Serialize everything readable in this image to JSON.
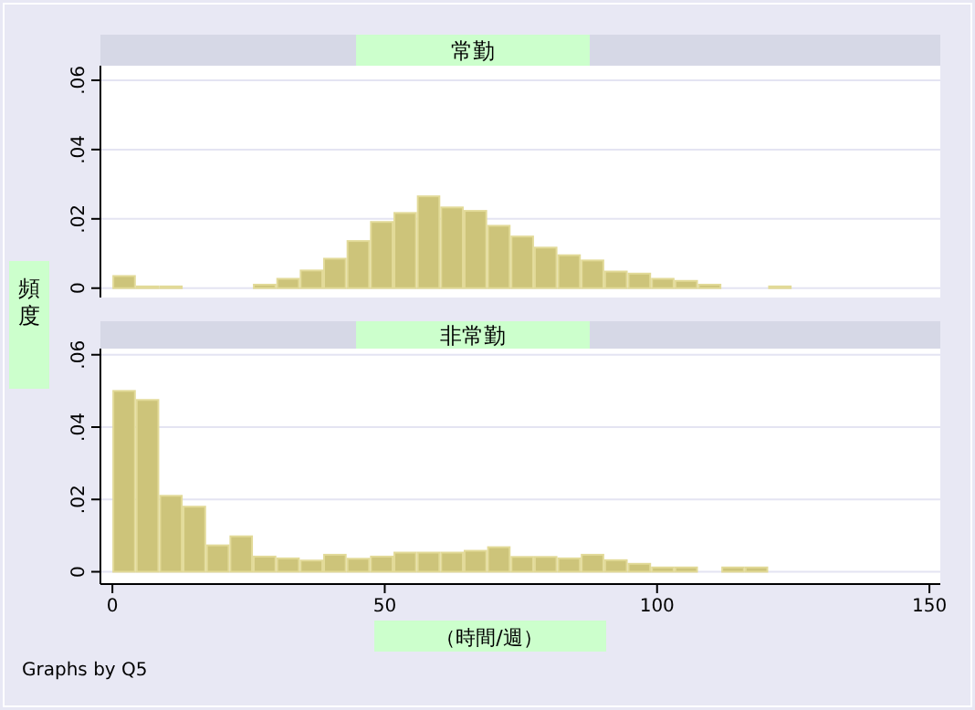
{
  "chart_data": [
    {
      "type": "histogram",
      "title": "常勤",
      "ylabel": "頻度",
      "tick_labels": "y",
      "grid": "y",
      "color": "#cdc47a",
      "bins": [
        0,
        4.3,
        8.6,
        12.9,
        17.2,
        21.5,
        25.8,
        30.1,
        34.4,
        38.7,
        43,
        47.3,
        51.6,
        55.9,
        60.2,
        64.5,
        68.8,
        73.1,
        77.4,
        81.7,
        86,
        90.3,
        94.6,
        98.9,
        103.2,
        107.5,
        111.8,
        116.1,
        120.4,
        124.7
      ],
      "values": [
        0.0035,
        0.0005,
        0.0005,
        0,
        0,
        0,
        0.001,
        0.0027,
        0.0051,
        0.0085,
        0.0136,
        0.0191,
        0.0217,
        0.0265,
        0.0233,
        0.0223,
        0.018,
        0.0149,
        0.0117,
        0.0095,
        0.008,
        0.0048,
        0.0042,
        0.0027,
        0.0021,
        0.001,
        0,
        0,
        0.0005
      ],
      "xlim": [
        -2.2,
        152
      ],
      "ylim": [
        -0.0027,
        0.0642
      ],
      "yticks": [
        {
          "value": 0,
          "label": "0"
        },
        {
          "value": 0.02,
          "label": ".02"
        },
        {
          "value": 0.04,
          "label": ".04"
        },
        {
          "value": 0.06,
          "label": ".06"
        }
      ]
    },
    {
      "type": "histogram",
      "title": "非常勤",
      "xlabel": "（時間/週）",
      "grid": "y",
      "color": "#cdc47a",
      "annotations": [
        "Graphs by Q5"
      ],
      "bins": [
        0,
        4.3,
        8.6,
        12.9,
        17.2,
        21.5,
        25.8,
        30.1,
        34.4,
        38.7,
        43,
        47.3,
        51.6,
        55.9,
        60.2,
        64.5,
        68.8,
        73.1,
        77.4,
        81.7,
        86,
        90.3,
        94.6,
        98.9,
        103.2,
        107.5,
        111.8,
        116.1,
        120.4,
        124.7
      ],
      "values": [
        0.05,
        0.0475,
        0.021,
        0.018,
        0.0073,
        0.0098,
        0.0042,
        0.0037,
        0.0031,
        0.0047,
        0.0036,
        0.0042,
        0.0053,
        0.0053,
        0.0053,
        0.0058,
        0.0068,
        0.0041,
        0.0041,
        0.0037,
        0.0047,
        0.0032,
        0.0022,
        0.0012,
        0.0012,
        0,
        0.0012,
        0.0012,
        0
      ],
      "xlim": [
        -2.2,
        152
      ],
      "ylim": [
        -0.0034,
        0.0617
      ],
      "xticks": [
        0,
        50,
        100,
        150
      ],
      "yticks": [
        {
          "value": 0,
          "label": "0"
        },
        {
          "value": 0.02,
          "label": ".02"
        },
        {
          "value": 0.04,
          "label": ".04"
        },
        {
          "value": 0.06,
          "label": ".06"
        }
      ]
    }
  ]
}
